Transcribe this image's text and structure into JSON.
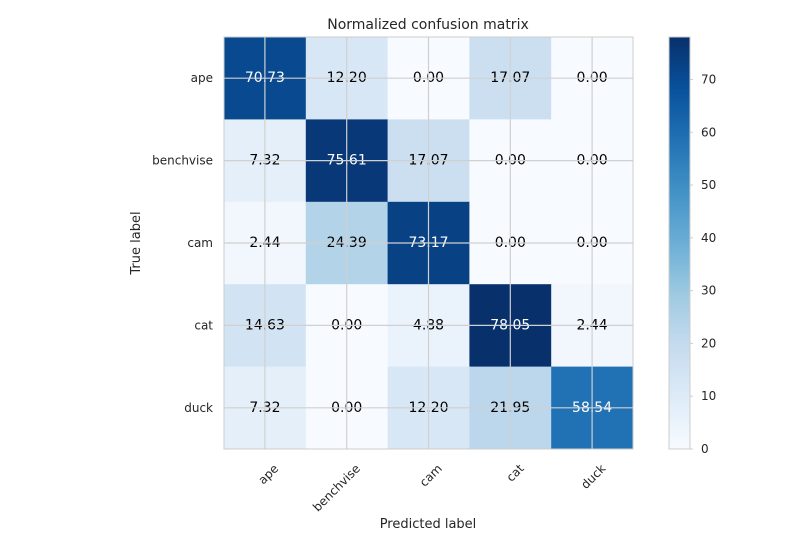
{
  "chart_data": {
    "type": "heatmap",
    "title": "Normalized confusion matrix",
    "xlabel": "Predicted label",
    "ylabel": "True label",
    "x_categories": [
      "ape",
      "benchvise",
      "cam",
      "cat",
      "duck"
    ],
    "y_categories": [
      "ape",
      "benchvise",
      "cam",
      "cat",
      "duck"
    ],
    "values": [
      [
        70.73,
        12.2,
        0.0,
        17.07,
        0.0
      ],
      [
        7.32,
        75.61,
        17.07,
        0.0,
        0.0
      ],
      [
        2.44,
        24.39,
        73.17,
        0.0,
        0.0
      ],
      [
        14.63,
        0.0,
        4.88,
        78.05,
        2.44
      ],
      [
        7.32,
        0.0,
        12.2,
        21.95,
        58.54
      ]
    ],
    "value_labels": [
      [
        "70.73",
        "12.20",
        "0.00",
        "17.07",
        "0.00"
      ],
      [
        "7.32",
        "75.61",
        "17.07",
        "0.00",
        "0.00"
      ],
      [
        "2.44",
        "24.39",
        "73.17",
        "0.00",
        "0.00"
      ],
      [
        "14.63",
        "0.00",
        "4.88",
        "78.05",
        "2.44"
      ],
      [
        "7.32",
        "0.00",
        "12.20",
        "21.95",
        "58.54"
      ]
    ],
    "colormap": "Blues",
    "color_range": [
      0,
      78.05
    ],
    "colorbar_ticks": [
      0,
      10,
      20,
      30,
      40,
      50,
      60,
      70
    ],
    "grid": true,
    "x_tick_rotation_deg": 45
  }
}
